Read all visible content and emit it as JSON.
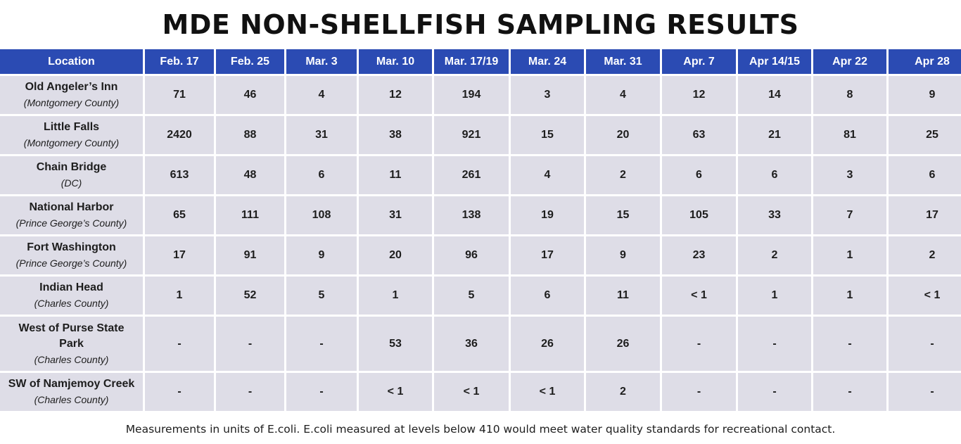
{
  "title": "MDE NON-SHELLFISH SAMPLING RESULTS",
  "table": {
    "headers": [
      "Location",
      "Feb. 17",
      "Feb. 25",
      "Mar. 3",
      "Mar. 10",
      "Mar. 17/19",
      "Mar. 24",
      "Mar. 31",
      "Apr. 7",
      "Apr 14/15",
      "Apr 22",
      "Apr 28"
    ],
    "rows": [
      {
        "name": "Old Angeler’s Inn",
        "county": "(Montgomery County)",
        "values": [
          "71",
          "46",
          "4",
          "12",
          "194",
          "3",
          "4",
          "12",
          "14",
          "8",
          "9"
        ]
      },
      {
        "name": "Little Falls",
        "county": "(Montgomery County)",
        "values": [
          "2420",
          "88",
          "31",
          "38",
          "921",
          "15",
          "20",
          "63",
          "21",
          "81",
          "25"
        ]
      },
      {
        "name": "Chain Bridge",
        "county": "(DC)",
        "values": [
          "613",
          "48",
          "6",
          "11",
          "261",
          "4",
          "2",
          "6",
          "6",
          "3",
          "6"
        ]
      },
      {
        "name": "National Harbor",
        "county": "(Prince George’s County)",
        "values": [
          "65",
          "111",
          "108",
          "31",
          "138",
          "19",
          "15",
          "105",
          "33",
          "7",
          "17"
        ]
      },
      {
        "name": "Fort Washington",
        "county": "(Prince George’s County)",
        "values": [
          "17",
          "91",
          "9",
          "20",
          "96",
          "17",
          "9",
          "23",
          "2",
          "1",
          "2"
        ]
      },
      {
        "name": "Indian Head",
        "county": "(Charles County)",
        "values": [
          "1",
          "52",
          "5",
          "1",
          "5",
          "6",
          "11",
          "< 1",
          "1",
          "1",
          "< 1"
        ]
      },
      {
        "name": "West of Purse State Park",
        "county": "(Charles County)",
        "values": [
          "-",
          "-",
          "-",
          "53",
          "36",
          "26",
          "26",
          "-",
          "-",
          "-",
          "-"
        ]
      },
      {
        "name": "SW of Namjemoy Creek",
        "county": "(Charles County)",
        "values": [
          "-",
          "-",
          "-",
          "< 1",
          "< 1",
          "< 1",
          "2",
          "-",
          "-",
          "-",
          "-"
        ]
      }
    ]
  },
  "footnote": "Measurements in units of E.coli. E.coli measured at levels below 410 would meet water quality standards for recreational contact.",
  "colors": {
    "header_bg": "#2b4bb3",
    "header_text": "#ffffff",
    "cell_bg": "#dedde7"
  }
}
